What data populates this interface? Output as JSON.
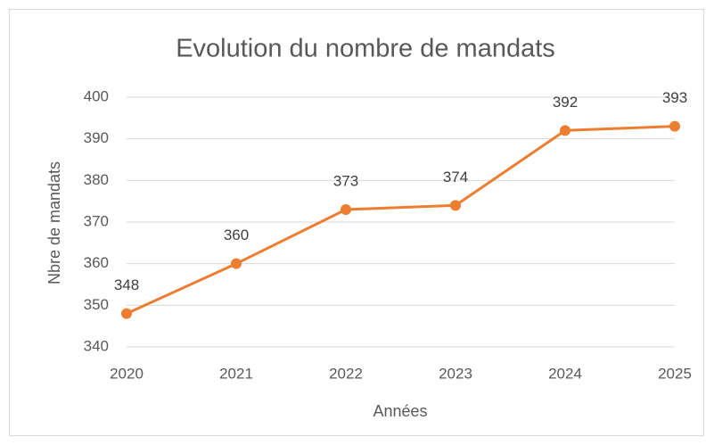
{
  "chart_data": {
    "type": "line",
    "title": "Evolution du nombre de mandats",
    "x_label": "Années",
    "y_label": "Nbre de mandats",
    "categories": [
      "2020",
      "2021",
      "2022",
      "2023",
      "2024",
      "2025"
    ],
    "series": [
      {
        "name": "Nbre de mandats",
        "color": "#ed7d31",
        "values": [
          348,
          360,
          373,
          374,
          392,
          393
        ]
      }
    ],
    "ylim": [
      340,
      400
    ],
    "yticks": [
      340,
      350,
      360,
      370,
      380,
      390,
      400
    ],
    "grid": true,
    "data_labels": true
  }
}
